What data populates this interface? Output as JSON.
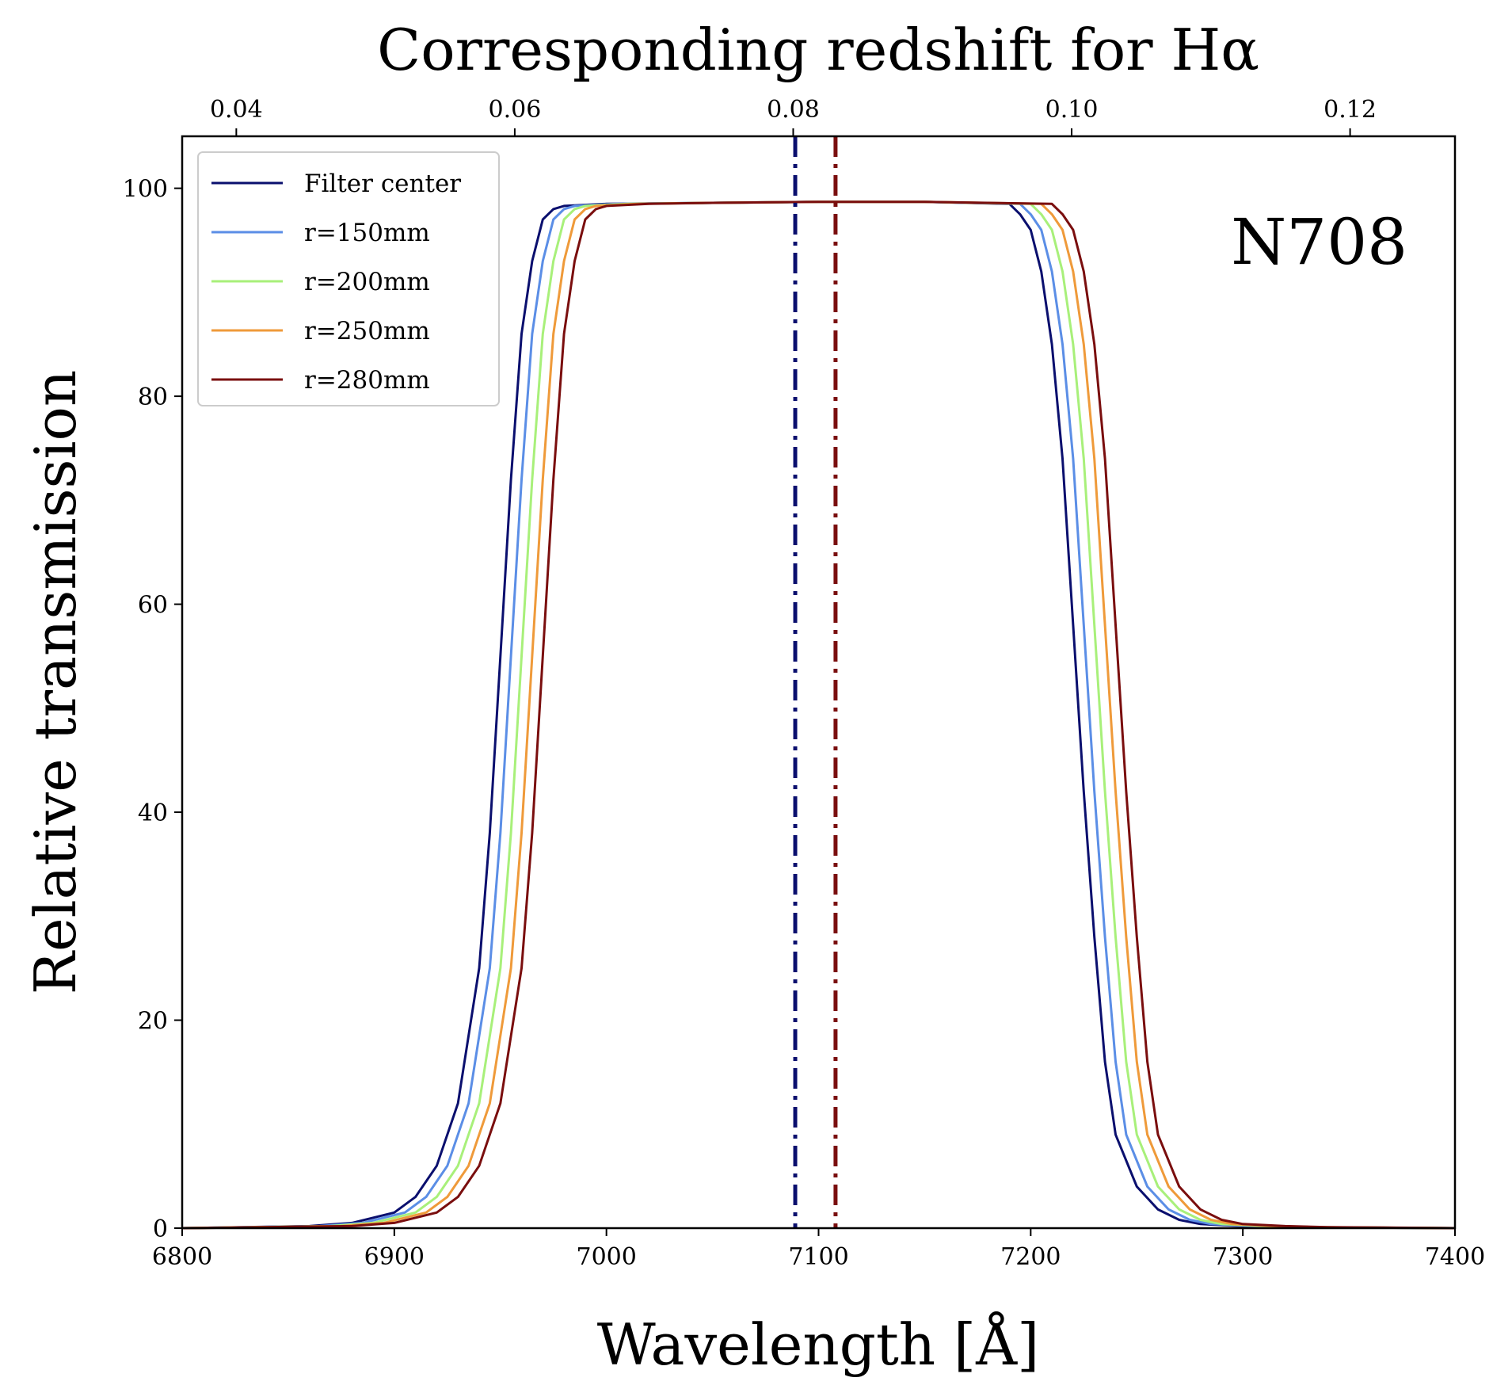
{
  "chart_data": {
    "type": "line",
    "title": "",
    "xlabel": "Wavelength [Å]",
    "ylabel": "Relative transmission",
    "secondary_xlabel": "Corresponding redshift for Hα",
    "secondary_x_ticks": [
      "0.04",
      "0.06",
      "0.08",
      "0.10",
      "0.12"
    ],
    "secondary_x_relation": "z = λ / 6563 − 1",
    "xlim": [
      6800,
      7400
    ],
    "ylim": [
      0,
      105
    ],
    "x_ticks": [
      "6800",
      "6900",
      "7000",
      "7100",
      "7200",
      "7300",
      "7400"
    ],
    "y_ticks": [
      "0",
      "20",
      "40",
      "60",
      "80",
      "100"
    ],
    "annotation": "N708",
    "legend_position": "upper-left",
    "grid": false,
    "series": [
      {
        "name": "Filter center",
        "color": "#0a0f6e",
        "x": [
          6800,
          6860,
          6880,
          6900,
          6910,
          6920,
          6930,
          6940,
          6945,
          6950,
          6955,
          6960,
          6965,
          6970,
          6975,
          6980,
          7000,
          7050,
          7100,
          7150,
          7190,
          7195,
          7200,
          7205,
          7210,
          7215,
          7220,
          7225,
          7230,
          7235,
          7240,
          7250,
          7260,
          7270,
          7280,
          7300,
          7320,
          7400
        ],
        "y": [
          0,
          0.2,
          0.5,
          1.5,
          3,
          6,
          12,
          25,
          38,
          55,
          72,
          86,
          93,
          97,
          98,
          98.3,
          98.5,
          98.6,
          98.7,
          98.7,
          98.5,
          97.5,
          96,
          92,
          85,
          74,
          58,
          42,
          28,
          16,
          9,
          4,
          1.8,
          0.8,
          0.4,
          0.2,
          0.1,
          0
        ]
      },
      {
        "name": "r=150mm",
        "color": "#5b8ee6",
        "x": [
          6800,
          6865,
          6885,
          6905,
          6915,
          6925,
          6935,
          6945,
          6950,
          6955,
          6960,
          6965,
          6970,
          6975,
          6980,
          6985,
          7005,
          7050,
          7100,
          7150,
          7195,
          7200,
          7205,
          7210,
          7215,
          7220,
          7225,
          7230,
          7235,
          7240,
          7245,
          7255,
          7265,
          7275,
          7285,
          7305,
          7325,
          7400
        ],
        "y": [
          0,
          0.2,
          0.5,
          1.5,
          3,
          6,
          12,
          25,
          38,
          55,
          72,
          86,
          93,
          97,
          98,
          98.3,
          98.5,
          98.6,
          98.7,
          98.7,
          98.5,
          97.5,
          96,
          92,
          85,
          74,
          58,
          42,
          28,
          16,
          9,
          4,
          1.8,
          0.8,
          0.4,
          0.2,
          0.1,
          0
        ]
      },
      {
        "name": "r=200mm",
        "color": "#a8f07a",
        "x": [
          6800,
          6870,
          6890,
          6910,
          6920,
          6930,
          6940,
          6950,
          6955,
          6960,
          6965,
          6970,
          6975,
          6980,
          6985,
          6990,
          7010,
          7050,
          7100,
          7150,
          7200,
          7205,
          7210,
          7215,
          7220,
          7225,
          7230,
          7235,
          7240,
          7245,
          7250,
          7260,
          7270,
          7280,
          7290,
          7310,
          7330,
          7400
        ],
        "y": [
          0,
          0.2,
          0.5,
          1.5,
          3,
          6,
          12,
          25,
          38,
          55,
          72,
          86,
          93,
          97,
          98,
          98.3,
          98.5,
          98.6,
          98.7,
          98.7,
          98.5,
          97.5,
          96,
          92,
          85,
          74,
          58,
          42,
          28,
          16,
          9,
          4,
          1.8,
          0.8,
          0.4,
          0.2,
          0.1,
          0
        ]
      },
      {
        "name": "r=250mm",
        "color": "#ef9a3a",
        "x": [
          6800,
          6875,
          6895,
          6915,
          6925,
          6935,
          6945,
          6955,
          6960,
          6965,
          6970,
          6975,
          6980,
          6985,
          6990,
          6995,
          7015,
          7050,
          7100,
          7150,
          7205,
          7210,
          7215,
          7220,
          7225,
          7230,
          7235,
          7240,
          7245,
          7250,
          7255,
          7265,
          7275,
          7285,
          7295,
          7315,
          7335,
          7400
        ],
        "y": [
          0,
          0.2,
          0.5,
          1.5,
          3,
          6,
          12,
          25,
          38,
          55,
          72,
          86,
          93,
          97,
          98,
          98.3,
          98.5,
          98.6,
          98.7,
          98.7,
          98.5,
          97.5,
          96,
          92,
          85,
          74,
          58,
          42,
          28,
          16,
          9,
          4,
          1.8,
          0.8,
          0.4,
          0.2,
          0.1,
          0
        ]
      },
      {
        "name": "r=280mm",
        "color": "#7a0e0e",
        "x": [
          6800,
          6880,
          6900,
          6920,
          6930,
          6940,
          6950,
          6960,
          6965,
          6970,
          6975,
          6980,
          6985,
          6990,
          6995,
          7000,
          7020,
          7050,
          7100,
          7150,
          7210,
          7215,
          7220,
          7225,
          7230,
          7235,
          7240,
          7245,
          7250,
          7255,
          7260,
          7270,
          7280,
          7290,
          7300,
          7320,
          7340,
          7400
        ],
        "y": [
          0,
          0.2,
          0.5,
          1.5,
          3,
          6,
          12,
          25,
          38,
          55,
          72,
          86,
          93,
          97,
          98,
          98.3,
          98.5,
          98.6,
          98.7,
          98.7,
          98.5,
          97.5,
          96,
          92,
          85,
          74,
          58,
          42,
          28,
          16,
          9,
          4,
          1.8,
          0.8,
          0.4,
          0.2,
          0.1,
          0
        ]
      }
    ],
    "vertical_lines": [
      {
        "x": 7089,
        "color": "#0a0f6e",
        "style": "dash-dot"
      },
      {
        "x": 7108,
        "color": "#7a0e0e",
        "style": "dash-dot"
      }
    ]
  }
}
